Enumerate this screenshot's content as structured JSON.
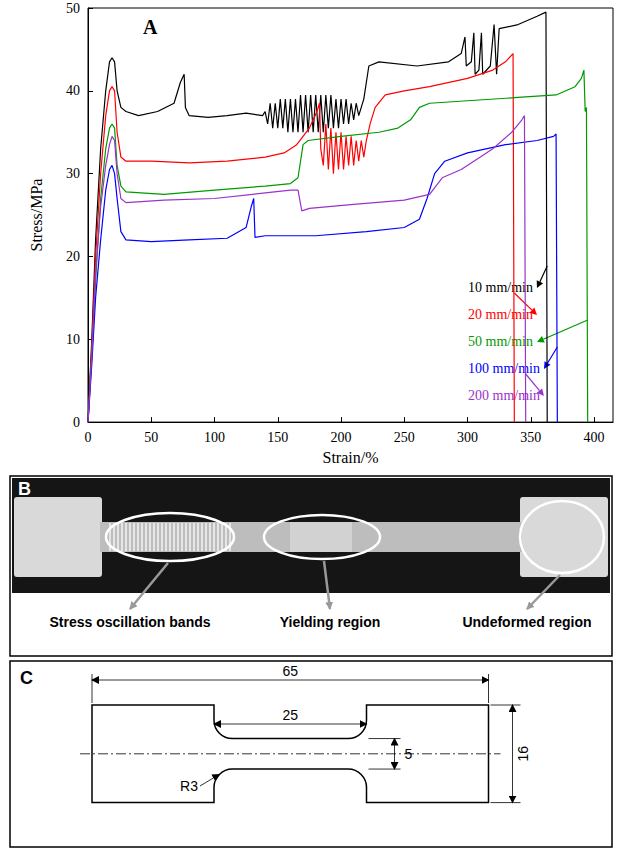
{
  "chart_data": {
    "type": "line",
    "title": "A",
    "xlabel": "Strain/%",
    "ylabel": "Stress/MPa",
    "xlim": [
      0,
      415
    ],
    "xticks": [
      0,
      50,
      100,
      150,
      200,
      250,
      300,
      350,
      400
    ],
    "ylim": [
      0,
      50
    ],
    "yticks": [
      0,
      10,
      20,
      30,
      40,
      50
    ],
    "grid": false,
    "series": [
      {
        "name": "10 mm/min",
        "color": "#000000",
        "x": [
          0,
          3,
          6,
          10,
          14,
          17,
          19,
          21,
          23,
          26,
          30,
          40,
          55,
          68,
          73,
          76,
          77,
          80,
          95,
          110,
          125,
          138,
          140,
          142,
          144,
          146,
          148,
          150,
          152,
          154,
          156,
          158,
          160,
          162,
          164,
          166,
          168,
          170,
          172,
          174,
          176,
          178,
          180,
          182,
          184,
          186,
          188,
          190,
          192,
          194,
          196,
          198,
          200,
          202,
          204,
          206,
          208,
          210,
          212,
          214,
          218,
          222,
          230,
          260,
          285,
          295,
          298,
          299,
          303,
          305,
          306,
          309,
          311,
          312,
          318,
          321,
          323,
          325,
          340,
          355,
          362,
          363
        ],
        "values": [
          0,
          10,
          22,
          33,
          40,
          43.5,
          44,
          43.5,
          40,
          38,
          37.5,
          37,
          37.5,
          38.5,
          41,
          42,
          38,
          37,
          36.8,
          37,
          37.3,
          37,
          37.5,
          36,
          38.5,
          35.5,
          38.5,
          35.5,
          39,
          35.5,
          39,
          35,
          39,
          35,
          39,
          35,
          39.5,
          35,
          39.5,
          35,
          39.5,
          35,
          39.5,
          35,
          39.5,
          35,
          39.5,
          35.5,
          39.5,
          35.5,
          39,
          35.5,
          39,
          36,
          39,
          36,
          38.5,
          36.5,
          38.5,
          37,
          39,
          43,
          43.5,
          43,
          43.5,
          44.5,
          46.5,
          43,
          43.5,
          47,
          42,
          42.5,
          47,
          42,
          43,
          48,
          42,
          47.5,
          48,
          49,
          49.5,
          0
        ]
      },
      {
        "name": "20 mm/min",
        "color": "#ff0000",
        "x": [
          0,
          3,
          6,
          10,
          14,
          17,
          19,
          21,
          23,
          26,
          30,
          50,
          80,
          110,
          140,
          155,
          165,
          175,
          181,
          183,
          184,
          186,
          188,
          190,
          192,
          194,
          196,
          198,
          200,
          202,
          204,
          206,
          208,
          210,
          212,
          214,
          216,
          218,
          220,
          223,
          227,
          235,
          250,
          270,
          300,
          320,
          330,
          336,
          337
        ],
        "values": [
          0,
          9,
          20,
          30,
          37,
          40,
          40.5,
          40,
          35,
          32,
          31.5,
          31.5,
          31.3,
          31.5,
          32,
          32.5,
          33.5,
          35.5,
          37.5,
          38.5,
          33,
          31,
          36,
          30.5,
          35.5,
          30,
          35,
          30.5,
          35,
          30.5,
          34.5,
          31,
          34.5,
          31,
          34,
          31.5,
          34,
          32,
          34,
          36,
          38,
          39.5,
          40,
          40.5,
          41.5,
          42.5,
          43.5,
          44.5,
          0
        ]
      },
      {
        "name": "50 mm/min",
        "color": "#009a00",
        "x": [
          0,
          3,
          6,
          10,
          14,
          17,
          19,
          21,
          23,
          26,
          30,
          60,
          100,
          140,
          160,
          166,
          170,
          174,
          200,
          230,
          245,
          255,
          262,
          270,
          300,
          340,
          370,
          385,
          390,
          392,
          393,
          394,
          395
        ],
        "values": [
          0,
          8,
          17,
          27,
          33,
          35.5,
          36,
          35.5,
          31,
          28.5,
          27.8,
          27.5,
          28,
          28.5,
          28.8,
          29.5,
          33.5,
          34,
          34.5,
          35,
          35.5,
          36.5,
          38,
          38.5,
          38.8,
          39.2,
          39.5,
          40.5,
          41.5,
          42.5,
          37.5,
          38,
          0
        ]
      },
      {
        "name": "100 mm/min",
        "color": "#0000ff",
        "x": [
          0,
          3,
          6,
          10,
          14,
          17,
          19,
          21,
          23,
          26,
          30,
          50,
          80,
          110,
          125,
          129,
          131,
          132,
          140,
          180,
          220,
          250,
          262,
          268,
          274,
          282,
          300,
          330,
          355,
          368,
          370,
          371
        ],
        "values": [
          0,
          7,
          15,
          22,
          28,
          30.5,
          31,
          30,
          27,
          23,
          22,
          21.8,
          22,
          22.2,
          23.5,
          26,
          27,
          22.3,
          22.5,
          22.5,
          23,
          23.5,
          24.5,
          27,
          30,
          31.5,
          32.5,
          33.5,
          34,
          34.5,
          34.8,
          0
        ]
      },
      {
        "name": "200 mm/min",
        "color": "#9933cc",
        "x": [
          0,
          3,
          6,
          10,
          14,
          17,
          19,
          21,
          23,
          26,
          30,
          60,
          100,
          130,
          160,
          166,
          169,
          175,
          210,
          250,
          270,
          280,
          295,
          305,
          320,
          335,
          343,
          345,
          346
        ],
        "values": [
          0,
          8,
          18,
          26,
          31,
          33.5,
          34.5,
          34,
          30,
          27,
          26.5,
          26.8,
          27,
          27.5,
          28,
          28,
          25.5,
          25.8,
          26.3,
          26.8,
          27.5,
          29.5,
          30.5,
          31.5,
          33,
          35,
          36.5,
          37,
          0
        ]
      }
    ]
  },
  "panel_b": {
    "label": "B",
    "annotations": [
      "Stress oscillation bands",
      "Yielding region",
      "Undeformed region"
    ]
  },
  "panel_c": {
    "label": "C",
    "overall_length": 65,
    "gauge_length": 25,
    "gauge_width": 5,
    "overall_width": 16,
    "fillet_radius": {
      "value": 3,
      "label": "R3"
    }
  }
}
